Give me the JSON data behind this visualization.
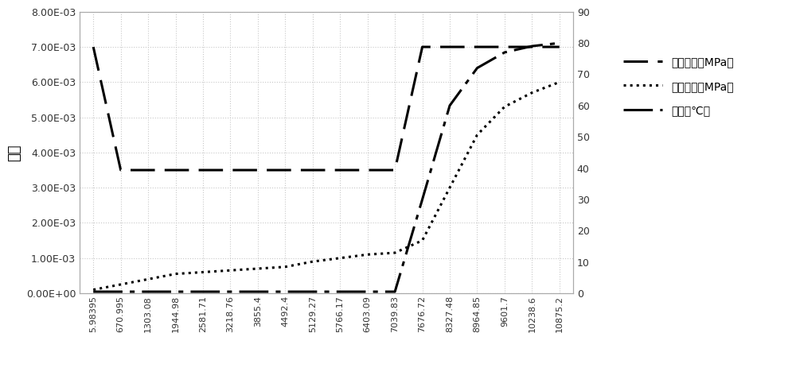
{
  "x_labels": [
    "5.98395",
    "670.995",
    "1303.08",
    "1944.98",
    "2581.71",
    "3218.76",
    "3855.4",
    "4492.4",
    "5129.27",
    "5766.17",
    "6403.09",
    "7039.83",
    "7676.72",
    "8327.48",
    "8964.85",
    "9601.7",
    "10238.6",
    "10875.2"
  ],
  "x_values": [
    5.98395,
    670.995,
    1303.08,
    1944.98,
    2581.71,
    3218.76,
    3855.4,
    4492.4,
    5129.27,
    5766.17,
    6403.09,
    7039.83,
    7676.72,
    8327.48,
    8964.85,
    9601.7,
    10238.6,
    10875.2
  ],
  "storage_modulus": [
    0.007,
    0.0035,
    0.0035,
    0.0035,
    0.0035,
    0.0035,
    0.0035,
    0.0035,
    0.0035,
    0.0035,
    0.0035,
    0.0035,
    0.007,
    0.007,
    0.007,
    0.007,
    0.007,
    0.007
  ],
  "loss_modulus": [
    0.0001,
    0.00025,
    0.0004,
    0.00055,
    0.0006,
    0.00065,
    0.0007,
    0.00075,
    0.0009,
    0.001,
    0.0011,
    0.00115,
    0.0015,
    0.003,
    0.0045,
    0.0053,
    0.0057,
    0.006
  ],
  "temperature": [
    0.5,
    0.5,
    0.5,
    0.5,
    0.5,
    0.5,
    0.5,
    0.5,
    0.5,
    0.5,
    0.5,
    0.5,
    30,
    60,
    72,
    77,
    79,
    80
  ],
  "left_ylim": [
    0.0,
    0.008
  ],
  "left_yticks": [
    0.0,
    0.001,
    0.002,
    0.003,
    0.004,
    0.005,
    0.006,
    0.007,
    0.008
  ],
  "left_yticklabels": [
    "0.00E+00",
    "1.00E-03",
    "2.00E-03",
    "3.00E-03",
    "4.00E-03",
    "5.00E-03",
    "6.00E-03",
    "7.00E-03",
    "8.00E-03"
  ],
  "right_ylim": [
    0,
    90
  ],
  "right_yticks": [
    0,
    10,
    20,
    30,
    40,
    50,
    60,
    70,
    80,
    90
  ],
  "ylabel_left": "剂模",
  "legend_storage": "储能模量（MPa）",
  "legend_loss": "捯耗模量（MPa）",
  "legend_temp": "温度（℃）",
  "storage_color": "#000000",
  "loss_color": "#000000",
  "temp_color": "#000000",
  "background_color": "#ffffff",
  "grid_color": "#c8c8c8",
  "border_color": "#aaaaaa"
}
